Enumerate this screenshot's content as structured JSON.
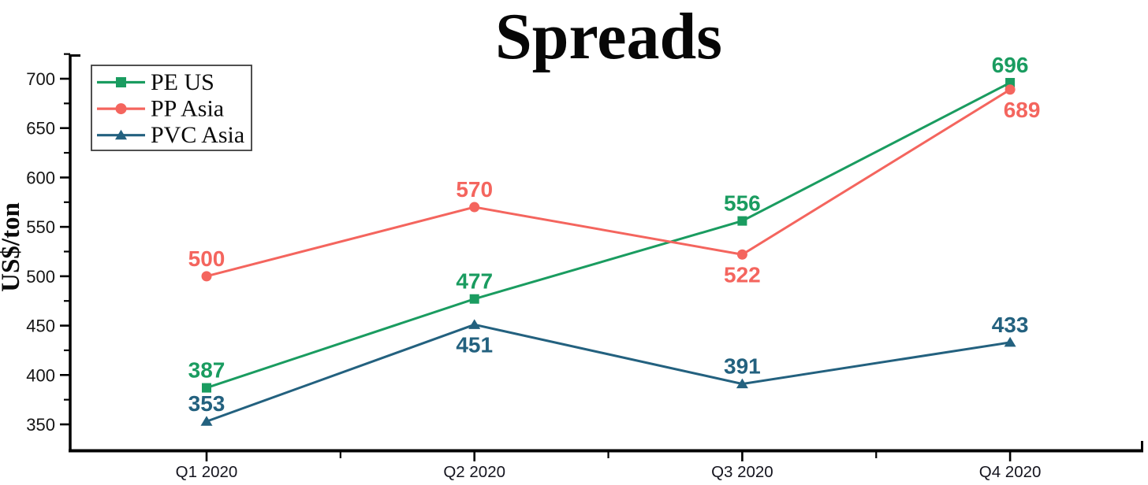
{
  "chart_data": {
    "type": "line",
    "title": "Spreads",
    "xlabel": "",
    "ylabel": "US$/ton",
    "categories": [
      "Q1 2020",
      "Q2 2020",
      "Q3 2020",
      "Q4 2020"
    ],
    "ylim": [
      325,
      725
    ],
    "yticks": [
      350,
      400,
      450,
      500,
      550,
      600,
      650,
      700
    ],
    "yticks_minor": [
      375,
      425,
      475,
      525,
      575,
      625,
      675,
      725
    ],
    "grid": false,
    "legend_position": "top-left",
    "axis_color": "#000000",
    "series": [
      {
        "name": "PE US",
        "color": "#1A9C60",
        "marker": "square",
        "values": [
          387,
          477,
          556,
          696
        ],
        "label_side": [
          "above",
          "above",
          "above",
          "above"
        ]
      },
      {
        "name": "PP Asia",
        "color": "#F4655E",
        "marker": "circle",
        "values": [
          500,
          570,
          522,
          689
        ],
        "label_side": [
          "above",
          "above",
          "below",
          "below-right"
        ]
      },
      {
        "name": "PVC Asia",
        "color": "#23617F",
        "marker": "triangle",
        "values": [
          353,
          451,
          391,
          433
        ],
        "label_side": [
          "above",
          "below",
          "above",
          "above"
        ]
      }
    ]
  }
}
